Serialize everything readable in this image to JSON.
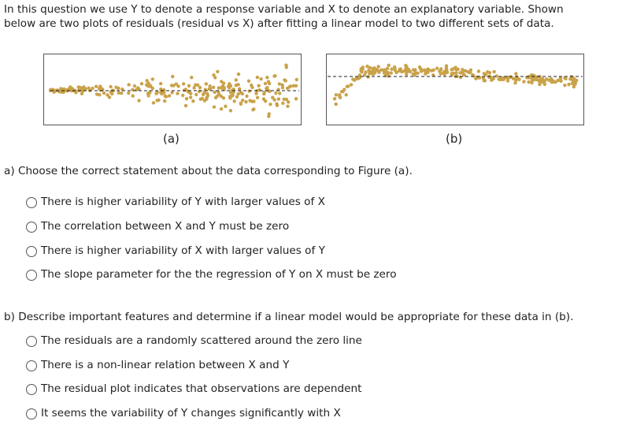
{
  "intro": [
    "In this question we use Y to denote a response variable and X to denote an explanatory variable. Shown",
    "below are two plots of residuals (residual vs X) after fitting a linear model to two different sets of data."
  ],
  "figures": [
    {
      "label": "(a)"
    },
    {
      "label": "(b)"
    }
  ],
  "questions": [
    {
      "prompt": "a) Choose the correct statement about the data corresponding to Figure (a).",
      "options": [
        "There is higher variability of Y with larger values of X",
        "The correlation between X and Y must be zero",
        "There is higher variability of X with larger values of Y",
        "The slope parameter for the the regression of Y on X must be zero"
      ]
    },
    {
      "prompt": "b) Describe important features and determine if a linear model would be appropriate for these data in (b).",
      "options": [
        "The residuals are a randomly scattered around the zero line",
        "There is a non-linear relation between X and Y",
        "The residual plot indicates that observations are dependent",
        "It seems the variability of Y changes significantly with X"
      ]
    }
  ]
}
